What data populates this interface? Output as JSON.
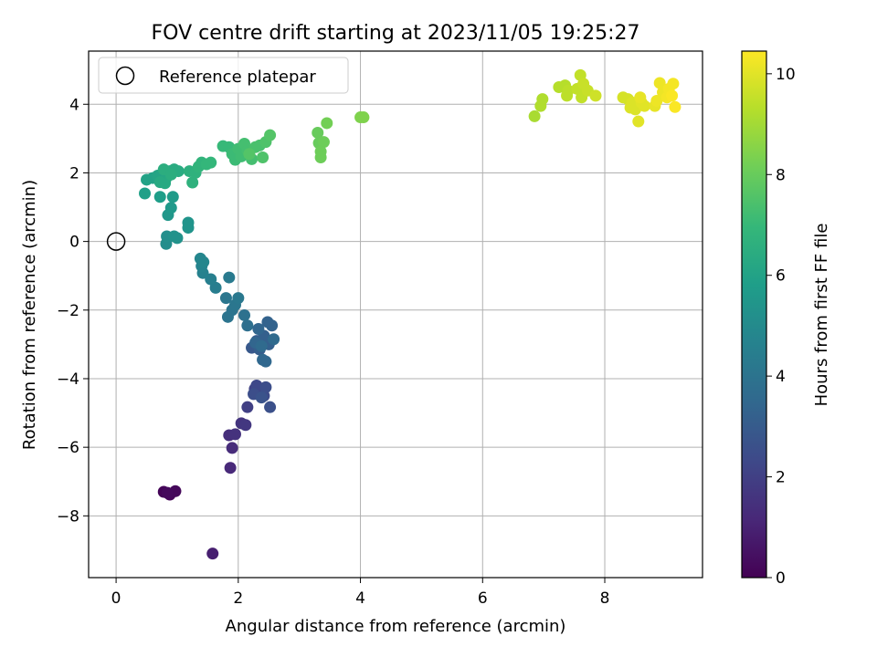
{
  "chart_data": {
    "type": "scatter",
    "title": "FOV centre drift starting at 2023/11/05 19:25:27",
    "xlabel": "Angular distance from reference (arcmin)",
    "ylabel": "Rotation from reference (arcmin)",
    "xlim": [
      -0.45,
      9.6
    ],
    "ylim": [
      -9.8,
      5.55
    ],
    "xticks": [
      0,
      2,
      4,
      6,
      8
    ],
    "yticks": [
      -8,
      -6,
      -4,
      -2,
      0,
      2,
      4
    ],
    "grid": true,
    "legend": {
      "placement": "top-left",
      "entries": [
        "Reference platepar"
      ]
    },
    "reference_point": {
      "x": 0,
      "y": 0,
      "marker": "hollow-circle"
    },
    "colorbar": {
      "label": "Hours from first FF file",
      "colormap": "viridis",
      "range": [
        0,
        10.45
      ],
      "ticks": [
        0,
        2,
        4,
        6,
        8,
        10
      ]
    },
    "colormap_stops": [
      "#440154",
      "#482878",
      "#3e4989",
      "#31688e",
      "#26828e",
      "#1f9e89",
      "#35b779",
      "#6ece58",
      "#b5de2b",
      "#fde725"
    ],
    "points": [
      {
        "x": 0.78,
        "y": -7.3,
        "h": 0.1
      },
      {
        "x": 0.88,
        "y": -7.38,
        "h": 0.15
      },
      {
        "x": 0.97,
        "y": -7.28,
        "h": 0.2
      },
      {
        "x": 0.84,
        "y": -7.33,
        "h": 0.25
      },
      {
        "x": 1.58,
        "y": -9.1,
        "h": 0.9
      },
      {
        "x": 1.87,
        "y": -6.6,
        "h": 1.2
      },
      {
        "x": 1.9,
        "y": -6.02,
        "h": 1.3
      },
      {
        "x": 1.85,
        "y": -5.65,
        "h": 1.4
      },
      {
        "x": 1.95,
        "y": -5.62,
        "h": 1.5
      },
      {
        "x": 2.05,
        "y": -5.3,
        "h": 1.6
      },
      {
        "x": 2.12,
        "y": -5.35,
        "h": 1.7
      },
      {
        "x": 2.15,
        "y": -4.83,
        "h": 2.0
      },
      {
        "x": 2.27,
        "y": -4.3,
        "h": 2.1
      },
      {
        "x": 2.35,
        "y": -4.45,
        "h": 2.2
      },
      {
        "x": 2.3,
        "y": -4.2,
        "h": 2.3
      },
      {
        "x": 2.42,
        "y": -4.5,
        "h": 2.4
      },
      {
        "x": 2.45,
        "y": -4.25,
        "h": 2.5
      },
      {
        "x": 2.25,
        "y": -4.45,
        "h": 2.5
      },
      {
        "x": 2.52,
        "y": -4.83,
        "h": 2.6
      },
      {
        "x": 2.38,
        "y": -4.55,
        "h": 2.7
      },
      {
        "x": 2.22,
        "y": -3.1,
        "h": 2.9
      },
      {
        "x": 2.3,
        "y": -2.9,
        "h": 3.0
      },
      {
        "x": 2.35,
        "y": -3.15,
        "h": 3.1
      },
      {
        "x": 2.42,
        "y": -2.75,
        "h": 3.2
      },
      {
        "x": 2.5,
        "y": -3.0,
        "h": 3.2
      },
      {
        "x": 2.55,
        "y": -2.45,
        "h": 3.3
      },
      {
        "x": 2.48,
        "y": -2.35,
        "h": 3.3
      },
      {
        "x": 2.33,
        "y": -2.55,
        "h": 3.4
      },
      {
        "x": 2.28,
        "y": -2.95,
        "h": 3.4
      },
      {
        "x": 2.4,
        "y": -3.45,
        "h": 3.5
      },
      {
        "x": 2.45,
        "y": -3.5,
        "h": 3.5
      },
      {
        "x": 2.58,
        "y": -2.85,
        "h": 3.6
      },
      {
        "x": 2.38,
        "y": -3.05,
        "h": 3.6
      },
      {
        "x": 2.15,
        "y": -2.45,
        "h": 3.8
      },
      {
        "x": 2.1,
        "y": -2.15,
        "h": 3.9
      },
      {
        "x": 1.83,
        "y": -2.2,
        "h": 4.0
      },
      {
        "x": 1.9,
        "y": -2.0,
        "h": 4.0
      },
      {
        "x": 1.8,
        "y": -1.65,
        "h": 4.1
      },
      {
        "x": 1.95,
        "y": -1.85,
        "h": 4.1
      },
      {
        "x": 2.0,
        "y": -1.65,
        "h": 4.2
      },
      {
        "x": 1.85,
        "y": -1.05,
        "h": 4.3
      },
      {
        "x": 1.63,
        "y": -1.35,
        "h": 4.4
      },
      {
        "x": 1.55,
        "y": -1.1,
        "h": 4.5
      },
      {
        "x": 1.42,
        "y": -0.92,
        "h": 4.6
      },
      {
        "x": 1.4,
        "y": -0.72,
        "h": 4.7
      },
      {
        "x": 1.38,
        "y": -0.5,
        "h": 4.8
      },
      {
        "x": 1.43,
        "y": -0.6,
        "h": 4.8
      },
      {
        "x": 0.82,
        "y": -0.07,
        "h": 5.1
      },
      {
        "x": 0.83,
        "y": 0.15,
        "h": 5.2
      },
      {
        "x": 0.95,
        "y": 0.15,
        "h": 5.3
      },
      {
        "x": 1.0,
        "y": 0.1,
        "h": 5.3
      },
      {
        "x": 1.18,
        "y": 0.4,
        "h": 5.4
      },
      {
        "x": 1.18,
        "y": 0.55,
        "h": 5.4
      },
      {
        "x": 0.85,
        "y": 0.77,
        "h": 5.5
      },
      {
        "x": 0.9,
        "y": 0.98,
        "h": 5.6
      },
      {
        "x": 0.93,
        "y": 1.3,
        "h": 5.7
      },
      {
        "x": 0.72,
        "y": 1.3,
        "h": 5.8
      },
      {
        "x": 0.47,
        "y": 1.4,
        "h": 5.9
      },
      {
        "x": 0.5,
        "y": 1.8,
        "h": 6.0
      },
      {
        "x": 0.6,
        "y": 1.85,
        "h": 6.0
      },
      {
        "x": 0.68,
        "y": 1.92,
        "h": 6.1
      },
      {
        "x": 0.75,
        "y": 1.97,
        "h": 6.1
      },
      {
        "x": 0.82,
        "y": 1.85,
        "h": 6.2
      },
      {
        "x": 0.88,
        "y": 2.05,
        "h": 6.2
      },
      {
        "x": 0.8,
        "y": 1.7,
        "h": 6.3
      },
      {
        "x": 0.72,
        "y": 1.73,
        "h": 6.3
      },
      {
        "x": 0.95,
        "y": 2.1,
        "h": 6.4
      },
      {
        "x": 1.02,
        "y": 2.05,
        "h": 6.4
      },
      {
        "x": 0.78,
        "y": 2.1,
        "h": 6.5
      },
      {
        "x": 0.9,
        "y": 1.95,
        "h": 6.5
      },
      {
        "x": 1.2,
        "y": 2.05,
        "h": 6.6
      },
      {
        "x": 1.25,
        "y": 1.72,
        "h": 6.7
      },
      {
        "x": 1.3,
        "y": 2.0,
        "h": 6.7
      },
      {
        "x": 1.35,
        "y": 2.18,
        "h": 6.8
      },
      {
        "x": 1.4,
        "y": 2.3,
        "h": 6.8
      },
      {
        "x": 1.48,
        "y": 2.25,
        "h": 6.9
      },
      {
        "x": 1.55,
        "y": 2.3,
        "h": 6.9
      },
      {
        "x": 1.75,
        "y": 2.78,
        "h": 7.0
      },
      {
        "x": 1.85,
        "y": 2.75,
        "h": 7.0
      },
      {
        "x": 1.9,
        "y": 2.55,
        "h": 7.1
      },
      {
        "x": 1.95,
        "y": 2.38,
        "h": 7.1
      },
      {
        "x": 2.0,
        "y": 2.7,
        "h": 7.2
      },
      {
        "x": 2.05,
        "y": 2.48,
        "h": 7.2
      },
      {
        "x": 2.1,
        "y": 2.85,
        "h": 7.3
      },
      {
        "x": 2.15,
        "y": 2.65,
        "h": 7.3
      },
      {
        "x": 2.22,
        "y": 2.4,
        "h": 7.3
      },
      {
        "x": 2.28,
        "y": 2.75,
        "h": 7.4
      },
      {
        "x": 2.35,
        "y": 2.8,
        "h": 7.4
      },
      {
        "x": 2.4,
        "y": 2.45,
        "h": 7.5
      },
      {
        "x": 2.45,
        "y": 2.9,
        "h": 7.5
      },
      {
        "x": 2.52,
        "y": 3.1,
        "h": 7.6
      },
      {
        "x": 2.18,
        "y": 2.55,
        "h": 7.6
      },
      {
        "x": 3.3,
        "y": 3.17,
        "h": 8.0
      },
      {
        "x": 3.32,
        "y": 2.87,
        "h": 8.0
      },
      {
        "x": 3.4,
        "y": 2.9,
        "h": 8.1
      },
      {
        "x": 3.35,
        "y": 2.62,
        "h": 8.1
      },
      {
        "x": 3.35,
        "y": 2.45,
        "h": 8.1
      },
      {
        "x": 3.45,
        "y": 3.45,
        "h": 8.2
      },
      {
        "x": 4.0,
        "y": 3.62,
        "h": 8.4
      },
      {
        "x": 4.05,
        "y": 3.62,
        "h": 8.4
      },
      {
        "x": 6.85,
        "y": 3.65,
        "h": 9.1
      },
      {
        "x": 6.95,
        "y": 3.95,
        "h": 9.2
      },
      {
        "x": 6.98,
        "y": 4.15,
        "h": 9.2
      },
      {
        "x": 7.25,
        "y": 4.5,
        "h": 9.3
      },
      {
        "x": 7.35,
        "y": 4.55,
        "h": 9.3
      },
      {
        "x": 7.4,
        "y": 4.4,
        "h": 9.4
      },
      {
        "x": 7.38,
        "y": 4.25,
        "h": 9.4
      },
      {
        "x": 7.55,
        "y": 4.45,
        "h": 9.5
      },
      {
        "x": 7.6,
        "y": 4.85,
        "h": 9.5
      },
      {
        "x": 7.62,
        "y": 4.2,
        "h": 9.5
      },
      {
        "x": 7.65,
        "y": 4.6,
        "h": 9.6
      },
      {
        "x": 7.72,
        "y": 4.4,
        "h": 9.6
      },
      {
        "x": 7.85,
        "y": 4.25,
        "h": 9.7
      },
      {
        "x": 8.3,
        "y": 4.2,
        "h": 9.8
      },
      {
        "x": 8.38,
        "y": 4.15,
        "h": 9.8
      },
      {
        "x": 8.42,
        "y": 3.9,
        "h": 9.9
      },
      {
        "x": 8.45,
        "y": 4.05,
        "h": 9.9
      },
      {
        "x": 8.5,
        "y": 3.85,
        "h": 9.9
      },
      {
        "x": 8.55,
        "y": 3.5,
        "h": 10.0
      },
      {
        "x": 8.6,
        "y": 4.05,
        "h": 10.0
      },
      {
        "x": 8.65,
        "y": 3.95,
        "h": 10.0
      },
      {
        "x": 8.58,
        "y": 4.2,
        "h": 10.1
      },
      {
        "x": 8.82,
        "y": 3.95,
        "h": 10.1
      },
      {
        "x": 8.85,
        "y": 4.1,
        "h": 10.2
      },
      {
        "x": 8.9,
        "y": 4.62,
        "h": 10.2
      },
      {
        "x": 8.95,
        "y": 4.35,
        "h": 10.2
      },
      {
        "x": 9.02,
        "y": 4.2,
        "h": 10.3
      },
      {
        "x": 9.05,
        "y": 4.45,
        "h": 10.3
      },
      {
        "x": 9.12,
        "y": 4.6,
        "h": 10.3
      },
      {
        "x": 9.15,
        "y": 3.92,
        "h": 10.4
      },
      {
        "x": 9.1,
        "y": 4.25,
        "h": 10.4
      }
    ]
  }
}
